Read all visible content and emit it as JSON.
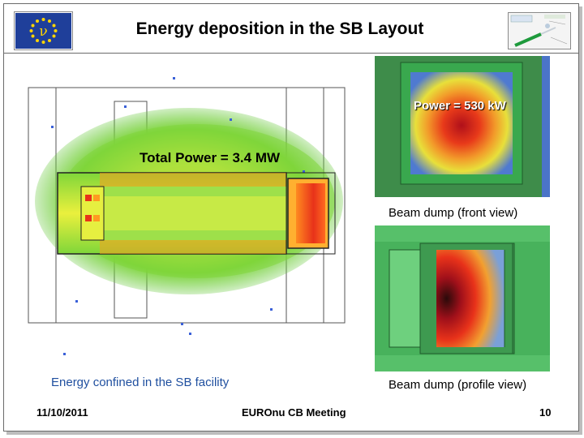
{
  "header": {
    "title": "Energy deposition in the SB Layout"
  },
  "colors": {
    "eu_blue": "#1f3f9a",
    "eu_star": "#ffd400",
    "sim_green": "#6fd03a",
    "sim_yellow": "#e8ef3a",
    "sim_red": "#e23a1a",
    "dump_green": "#4fa858"
  },
  "figures": {
    "main_sim": {
      "overlay_text": "Total Power = 3.4 MW",
      "caption": "Energy confined in the SB facility"
    },
    "front_view": {
      "overlay_text": "Power = 530 kW",
      "caption": "Beam dump (front view)"
    },
    "profile_view": {
      "caption": "Beam dump (profile view)"
    }
  },
  "footer": {
    "date": "11/10/2011",
    "meeting": "EUROnu CB Meeting",
    "page": "10"
  },
  "icons": {
    "eu_logo": "eu-flag-with-nu-icon",
    "map": "site-map-thumbnail-icon"
  }
}
